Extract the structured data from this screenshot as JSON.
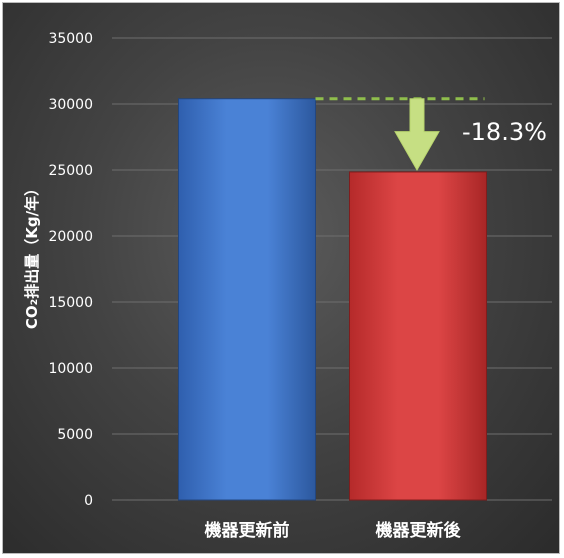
{
  "chart_data": {
    "type": "bar",
    "title": "",
    "xlabel": "",
    "ylabel": "CO₂排出量（Kg/年）",
    "categories": [
      "機器更新前",
      "機器更新後"
    ],
    "values": [
      30400,
      24850
    ],
    "ylim": [
      0,
      35000
    ],
    "yticks": [
      0,
      5000,
      10000,
      15000,
      20000,
      25000,
      30000,
      35000
    ],
    "grid": true,
    "legend": "none",
    "bar_colors": [
      "#3f73c8",
      "#d23b3b"
    ],
    "annotation": {
      "text": "-18.3%",
      "color": "#ffffff",
      "arrow_color": "#c6df83",
      "dashed_line_color": "#8fbe4c"
    }
  }
}
